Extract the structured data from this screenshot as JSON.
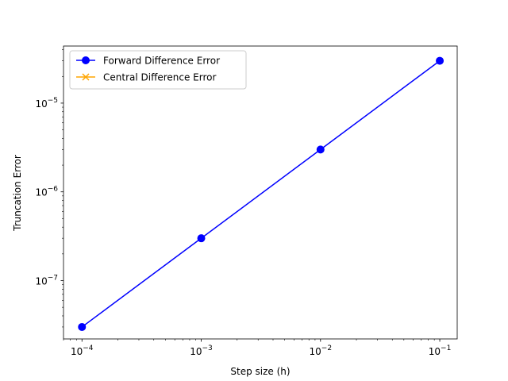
{
  "chart_data": {
    "type": "line",
    "x_scale": "log",
    "y_scale": "log",
    "xlabel": "Step size (h)",
    "ylabel": "Truncation Error",
    "xlim": [
      7e-05,
      0.14
    ],
    "ylim": [
      2.2e-08,
      4.4e-05
    ],
    "x_ticks": [
      0.0001,
      0.001,
      0.01,
      0.1
    ],
    "x_tick_labels": [
      {
        "base": "10",
        "exp": "−4"
      },
      {
        "base": "10",
        "exp": "−3"
      },
      {
        "base": "10",
        "exp": "−2"
      },
      {
        "base": "10",
        "exp": "−1"
      }
    ],
    "y_ticks": [
      1e-07,
      1e-06,
      1e-05
    ],
    "y_tick_labels": [
      {
        "base": "10",
        "exp": "−7"
      },
      {
        "base": "10",
        "exp": "−6"
      },
      {
        "base": "10",
        "exp": "−5"
      }
    ],
    "legend_position": "upper-left",
    "grid": false,
    "series": [
      {
        "name": "Forward Difference Error",
        "color": "#0000ff",
        "marker": "circle",
        "x": [
          0.0001,
          0.001,
          0.01,
          0.1
        ],
        "y": [
          3e-08,
          3e-07,
          3e-06,
          3e-05
        ]
      },
      {
        "name": "Central Difference Error",
        "color": "#ffa500",
        "marker": "x",
        "x": [],
        "y": []
      }
    ]
  }
}
